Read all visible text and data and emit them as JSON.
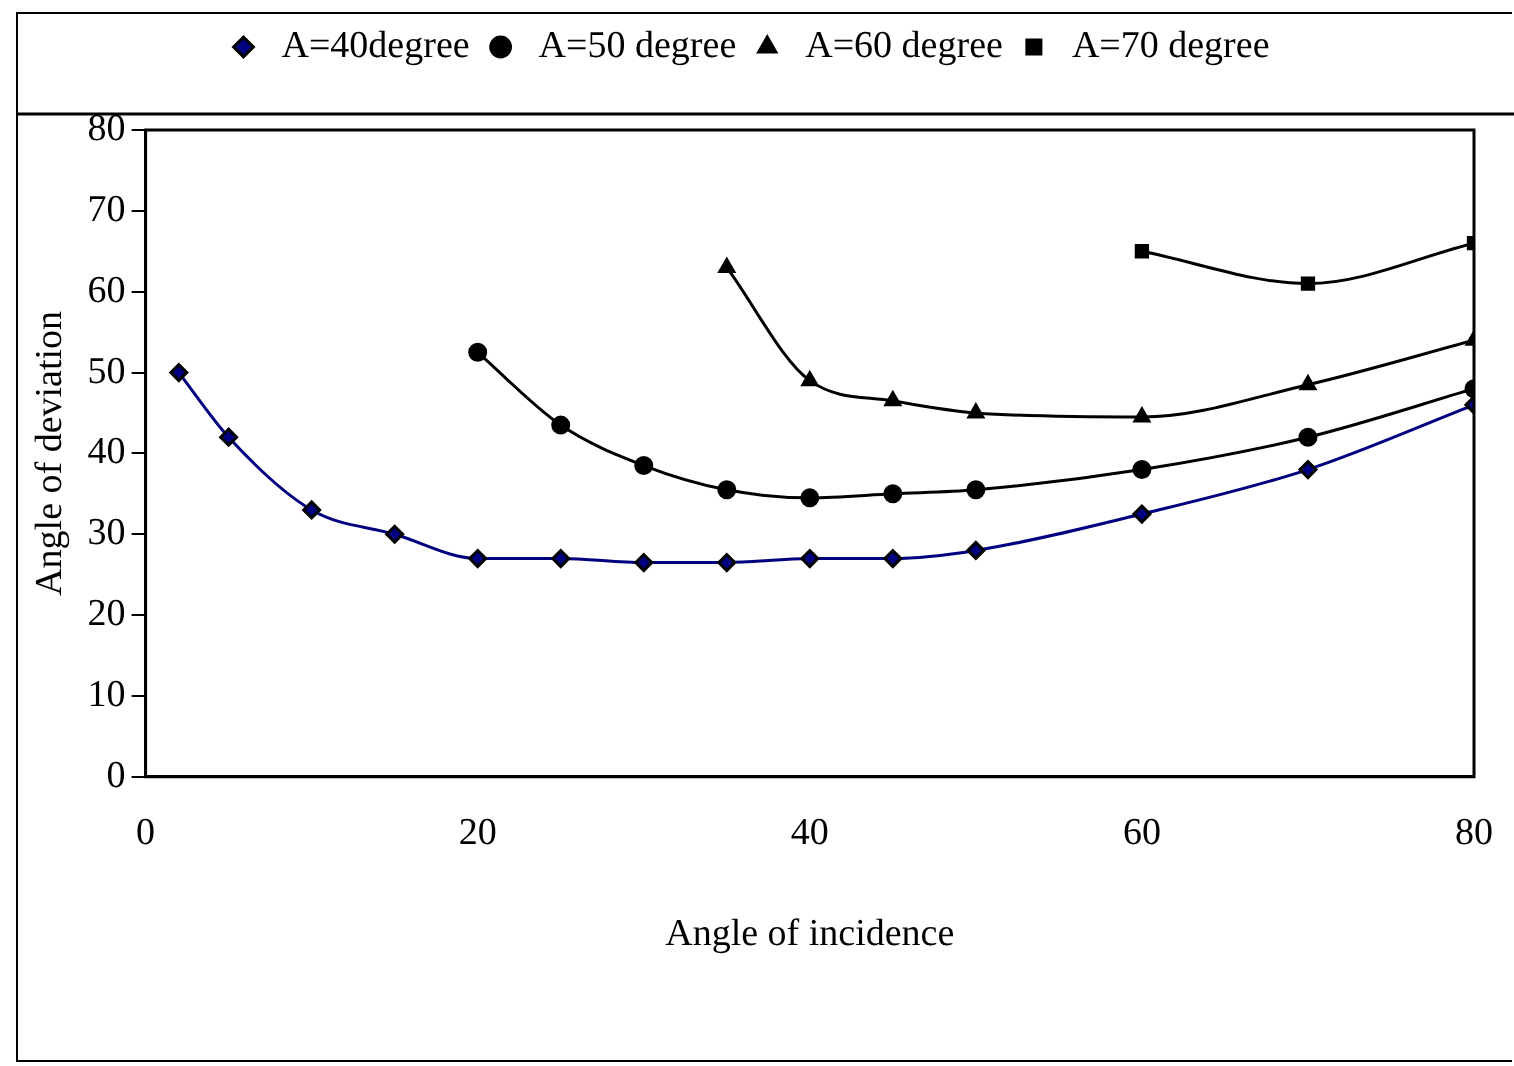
{
  "chart_data": {
    "type": "line",
    "xlabel": "Angle of incidence",
    "ylabel": "Angle of deviation",
    "xlim": [
      0,
      80
    ],
    "xticks": [
      0,
      20,
      40,
      60,
      80
    ],
    "ylim": [
      0,
      80
    ],
    "yticks": [
      0,
      10,
      20,
      30,
      40,
      50,
      60,
      70,
      80
    ],
    "grid": false,
    "legend": "top",
    "series": [
      {
        "name": "A=40degree",
        "color": "#000080",
        "marker": "diamond",
        "x": [
          2,
          5,
          10,
          15,
          20,
          25,
          30,
          35,
          40,
          45,
          50,
          60,
          70,
          80
        ],
        "values": [
          50,
          42,
          33,
          30,
          27,
          27,
          26.5,
          26.5,
          27,
          27,
          28,
          32.5,
          38,
          46
        ]
      },
      {
        "name": "A=50 degree",
        "color": "#000000",
        "marker": "circle",
        "x": [
          20,
          25,
          30,
          35,
          40,
          45,
          50,
          60,
          70,
          80
        ],
        "values": [
          52.5,
          43.5,
          38.5,
          35.5,
          34.5,
          35,
          35.5,
          38,
          42,
          48
        ]
      },
      {
        "name": "A=60 degree",
        "color": "#000000",
        "marker": "triangle",
        "x": [
          35,
          40,
          45,
          50,
          60,
          70,
          80
        ],
        "values": [
          63,
          49,
          46.5,
          45,
          44.5,
          48.5,
          54
        ]
      },
      {
        "name": "A=70 degree",
        "color": "#000000",
        "marker": "square",
        "x": [
          60,
          70,
          80
        ],
        "values": [
          65,
          61,
          66
        ]
      }
    ]
  }
}
